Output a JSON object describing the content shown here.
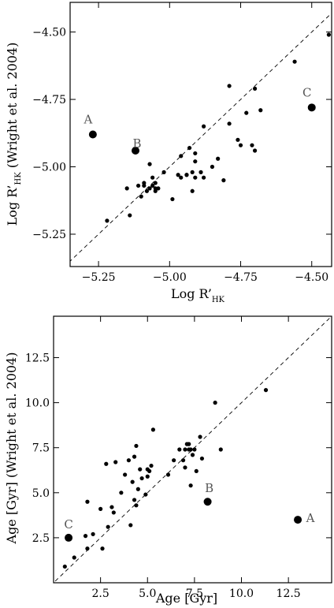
{
  "chart_data": [
    {
      "type": "scatter",
      "title": "",
      "xlabel": "Log R’",
      "xlabel_sub": "HK",
      "ylabel": "Log R’",
      "ylabel_sub": "HK",
      "ylabel_suffix": " (Wright et al. 2004)",
      "xlim": [
        -5.35,
        -4.43
      ],
      "ylim": [
        -5.37,
        -4.39
      ],
      "xticks": [
        -5.25,
        -5.0,
        -4.75,
        -4.5
      ],
      "xtick_labels": [
        "−5.25",
        "−5.00",
        "−4.75",
        "−4.50"
      ],
      "yticks": [
        -5.25,
        -5.0,
        -4.75,
        -4.5
      ],
      "ytick_labels": [
        "−5.25",
        "−5.00",
        "−4.75",
        "−4.50"
      ],
      "reference_line": "y = x (dashed)",
      "grid": false,
      "points": [
        [
          -4.44,
          -4.51
        ],
        [
          -4.56,
          -4.61
        ],
        [
          -4.7,
          -4.71
        ],
        [
          -4.79,
          -4.7
        ],
        [
          -4.68,
          -4.79
        ],
        [
          -4.73,
          -4.8
        ],
        [
          -4.79,
          -4.84
        ],
        [
          -4.88,
          -4.85
        ],
        [
          -4.76,
          -4.9
        ],
        [
          -4.75,
          -4.92
        ],
        [
          -4.71,
          -4.92
        ],
        [
          -4.7,
          -4.94
        ],
        [
          -4.93,
          -4.93
        ],
        [
          -4.91,
          -4.95
        ],
        [
          -4.96,
          -4.96
        ],
        [
          -4.91,
          -4.98
        ],
        [
          -4.83,
          -4.97
        ],
        [
          -4.85,
          -5.0
        ],
        [
          -4.81,
          -5.05
        ],
        [
          -4.88,
          -5.04
        ],
        [
          -4.91,
          -5.04
        ],
        [
          -4.94,
          -5.03
        ],
        [
          -4.96,
          -5.04
        ],
        [
          -4.97,
          -5.03
        ],
        [
          -4.92,
          -5.02
        ],
        [
          -4.89,
          -5.02
        ],
        [
          -5.02,
          -5.02
        ],
        [
          -5.07,
          -4.99
        ],
        [
          -5.09,
          -5.06
        ],
        [
          -5.06,
          -5.04
        ],
        [
          -5.05,
          -5.06
        ],
        [
          -5.06,
          -5.07
        ],
        [
          -5.07,
          -5.08
        ],
        [
          -5.09,
          -5.07
        ],
        [
          -5.11,
          -5.07
        ],
        [
          -5.04,
          -5.08
        ],
        [
          -5.05,
          -5.09
        ],
        [
          -5.08,
          -5.09
        ],
        [
          -5.1,
          -5.11
        ],
        [
          -5.15,
          -5.08
        ],
        [
          -5.14,
          -5.18
        ],
        [
          -5.22,
          -5.2
        ],
        [
          -4.99,
          -5.12
        ],
        [
          -4.92,
          -5.09
        ],
        [
          -4.94,
          -5.03
        ],
        [
          -5.05,
          -5.08
        ]
      ],
      "highlighted_points": [
        {
          "label": "A",
          "x": -5.27,
          "y": -4.88
        },
        {
          "label": "B",
          "x": -5.12,
          "y": -4.94
        },
        {
          "label": "C",
          "x": -4.5,
          "y": -4.78
        }
      ]
    },
    {
      "type": "scatter",
      "title": "",
      "xlabel": "Age [Gyr]",
      "ylabel": "Age [Gyr] (Wright et al. 2004)",
      "xlim": [
        0.0,
        14.8
      ],
      "ylim": [
        0.0,
        14.8
      ],
      "xticks": [
        2.5,
        5.0,
        7.5,
        10.0,
        12.5
      ],
      "xtick_labels": [
        "2.5",
        "5.0",
        "7.5",
        "10.0",
        "12.5"
      ],
      "yticks": [
        2.5,
        5.0,
        7.5,
        10.0,
        12.5
      ],
      "ytick_labels": [
        "2.5",
        "5.0",
        "7.5",
        "10.0",
        "12.5"
      ],
      "reference_line": "y = x (dashed)",
      "grid": false,
      "points": [
        [
          0.6,
          0.9
        ],
        [
          1.1,
          1.4
        ],
        [
          1.7,
          2.6
        ],
        [
          1.8,
          1.9
        ],
        [
          2.1,
          2.7
        ],
        [
          2.6,
          1.9
        ],
        [
          2.5,
          4.1
        ],
        [
          2.9,
          3.1
        ],
        [
          3.1,
          4.2
        ],
        [
          3.2,
          3.9
        ],
        [
          3.6,
          5.0
        ],
        [
          1.8,
          4.5
        ],
        [
          2.8,
          6.6
        ],
        [
          3.3,
          6.7
        ],
        [
          3.8,
          6.0
        ],
        [
          4.1,
          3.2
        ],
        [
          4.3,
          4.6
        ],
        [
          4.4,
          4.3
        ],
        [
          4.5,
          5.2
        ],
        [
          4.7,
          5.8
        ],
        [
          4.9,
          4.9
        ],
        [
          5.0,
          5.9
        ],
        [
          4.2,
          5.6
        ],
        [
          4.6,
          6.3
        ],
        [
          5.0,
          6.3
        ],
        [
          5.2,
          6.5
        ],
        [
          4.3,
          7.0
        ],
        [
          4.4,
          7.6
        ],
        [
          4.0,
          6.8
        ],
        [
          5.1,
          6.2
        ],
        [
          5.3,
          8.5
        ],
        [
          6.1,
          6.0
        ],
        [
          6.7,
          7.4
        ],
        [
          6.9,
          6.8
        ],
        [
          7.0,
          7.4
        ],
        [
          7.1,
          7.7
        ],
        [
          7.2,
          7.4
        ],
        [
          7.3,
          7.4
        ],
        [
          7.4,
          7.1
        ],
        [
          7.5,
          7.4
        ],
        [
          7.8,
          8.1
        ],
        [
          7.6,
          6.2
        ],
        [
          7.9,
          6.9
        ],
        [
          7.3,
          5.4
        ],
        [
          7.0,
          6.4
        ],
        [
          8.6,
          10.0
        ],
        [
          8.9,
          7.4
        ],
        [
          11.3,
          10.7
        ],
        [
          6.4,
          6.8
        ],
        [
          7.2,
          7.7
        ]
      ],
      "highlighted_points": [
        {
          "label": "C",
          "x": 0.8,
          "y": 2.5
        },
        {
          "label": "B",
          "x": 8.2,
          "y": 4.5
        },
        {
          "label": "A",
          "x": 13.0,
          "y": 3.5
        }
      ]
    }
  ]
}
